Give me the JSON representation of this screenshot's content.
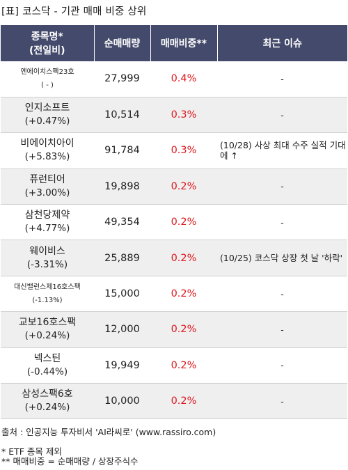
{
  "title": "[표] 코스닥 - 기관 매매 비중 상위",
  "header": {
    "col1_line1": "종목명*",
    "col1_line2": "(전일비)",
    "col2": "순매매량",
    "col3": "매매비중**",
    "col4": "최근 이슈"
  },
  "rows": [
    {
      "name": "엔에이치스팩23호",
      "change": "( - )",
      "volume": "27,999",
      "ratio": "0.4%",
      "issue": "-"
    },
    {
      "name": "인지소프트",
      "change": "(+0.47%)",
      "volume": "10,514",
      "ratio": "0.3%",
      "issue": "-"
    },
    {
      "name": "비에이치아이",
      "change": "(+5.83%)",
      "volume": "91,784",
      "ratio": "0.3%",
      "issue": "(10/28) 사상 최대 수주 실적 기대에 ↑"
    },
    {
      "name": "퓨런티어",
      "change": "(+3.00%)",
      "volume": "19,898",
      "ratio": "0.2%",
      "issue": "-"
    },
    {
      "name": "삼천당제약",
      "change": "(+4.77%)",
      "volume": "49,354",
      "ratio": "0.2%",
      "issue": "-"
    },
    {
      "name": "웨이비스",
      "change": "(-3.31%)",
      "volume": "25,889",
      "ratio": "0.2%",
      "issue": "(10/25) 코스닥 상장 첫 날 '하락'"
    },
    {
      "name": "대신밸런스제16호스팩",
      "change": "(-1.13%)",
      "volume": "15,000",
      "ratio": "0.2%",
      "issue": "-"
    },
    {
      "name": "교보16호스팩",
      "change": "(+0.24%)",
      "volume": "12,000",
      "ratio": "0.2%",
      "issue": "-"
    },
    {
      "name": "넥스틴",
      "change": "(-0.44%)",
      "volume": "19,949",
      "ratio": "0.2%",
      "issue": "-"
    },
    {
      "name": "삼성스팩6호",
      "change": "(+0.24%)",
      "volume": "10,000",
      "ratio": "0.2%",
      "issue": "-"
    }
  ],
  "footer": {
    "source": "출처 : 인공지능 투자비서 'AI라씨로' (www.rassiro.com)",
    "note1": "* ETF 종목 제외",
    "note2": "** 매매비중 = 순매매량 / 상장주식수"
  },
  "colors": {
    "header_bg": "#444a6b",
    "ratio_text": "#e0161b",
    "stripe": "#efefef"
  }
}
